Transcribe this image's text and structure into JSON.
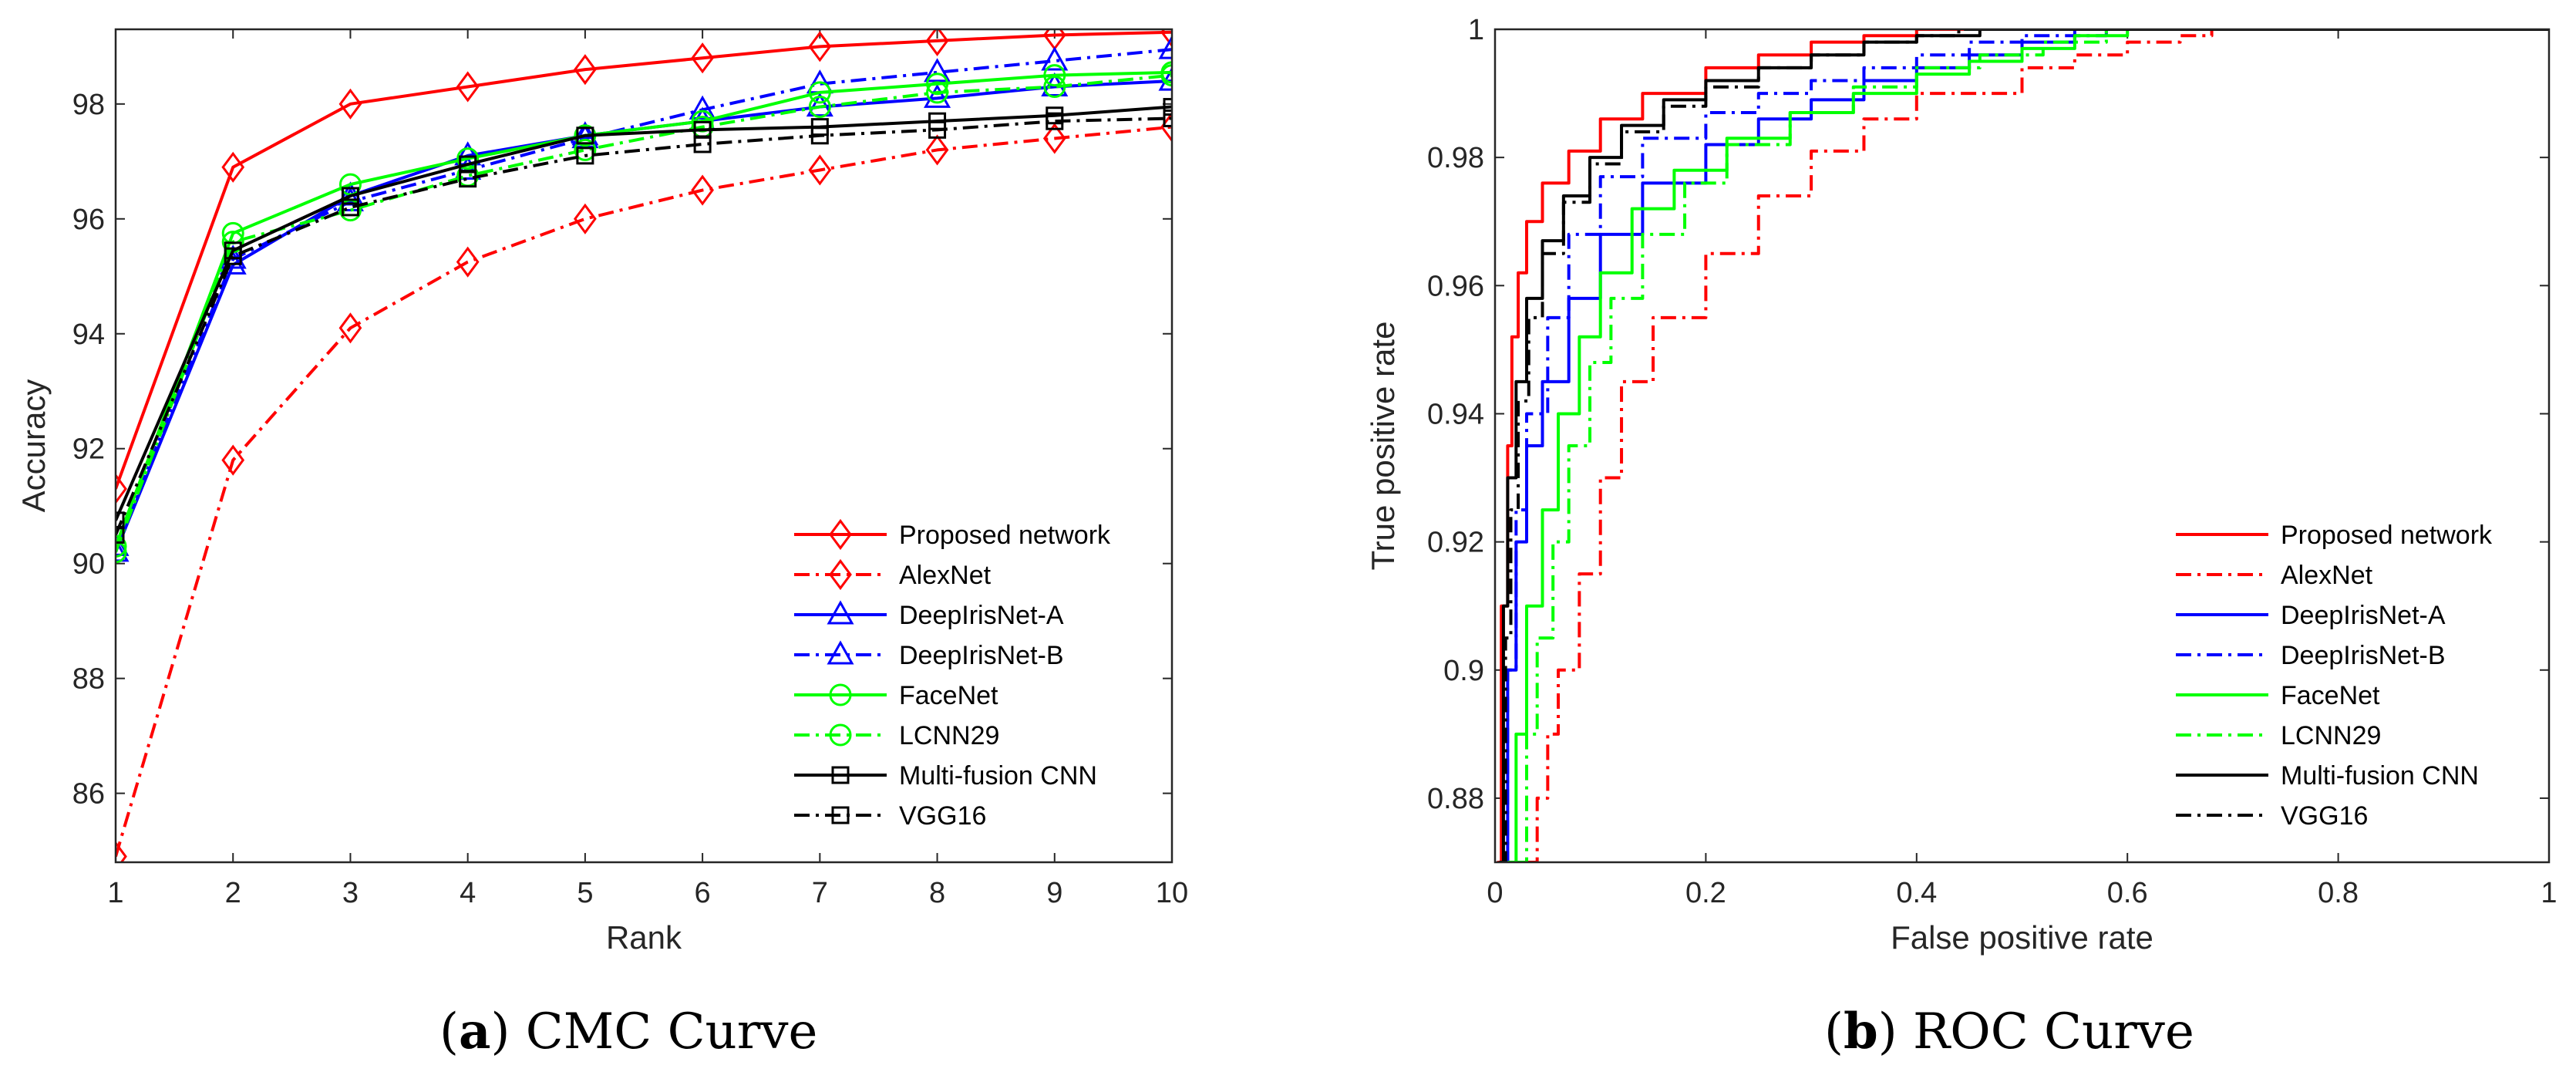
{
  "captions": [
    {
      "label": "a",
      "text": "CMC Curve"
    },
    {
      "label": "b",
      "text": "ROC Curve"
    }
  ],
  "chart_data": [
    {
      "type": "line",
      "panel": "a",
      "xlabel": "Rank",
      "ylabel": "Accuracy",
      "xlim": [
        1,
        10
      ],
      "ylim": [
        84.8,
        99.3
      ],
      "xticks": [
        1,
        2,
        3,
        4,
        5,
        6,
        7,
        8,
        9,
        10
      ],
      "yticks": [
        86,
        88,
        90,
        92,
        94,
        96,
        98
      ],
      "legend_position": "bottom-right",
      "x": [
        1,
        2,
        3,
        4,
        5,
        6,
        7,
        8,
        9,
        10
      ],
      "series": [
        {
          "name": "Proposed network",
          "color": "#ff0000",
          "style": "solid",
          "marker": "diamond",
          "values": [
            91.3,
            96.9,
            98.0,
            98.3,
            98.6,
            98.8,
            99.0,
            99.1,
            99.2,
            99.25
          ]
        },
        {
          "name": "AlexNet",
          "color": "#ff0000",
          "style": "dashdot",
          "marker": "diamond",
          "values": [
            84.9,
            91.8,
            94.1,
            95.25,
            96.0,
            96.5,
            96.85,
            97.2,
            97.4,
            97.6
          ]
        },
        {
          "name": "DeepIrisNet-A",
          "color": "#0000ff",
          "style": "solid",
          "marker": "triangle",
          "values": [
            90.2,
            95.2,
            96.4,
            97.1,
            97.45,
            97.7,
            97.95,
            98.1,
            98.3,
            98.4
          ]
        },
        {
          "name": "DeepIrisNet-B",
          "color": "#0000ff",
          "style": "dashdot",
          "marker": "triangle",
          "values": [
            90.3,
            95.3,
            96.3,
            96.85,
            97.4,
            97.9,
            98.35,
            98.55,
            98.75,
            98.95
          ]
        },
        {
          "name": "FaceNet",
          "color": "#00ff00",
          "style": "solid",
          "marker": "circle",
          "values": [
            90.3,
            95.75,
            96.6,
            97.05,
            97.45,
            97.7,
            98.2,
            98.35,
            98.5,
            98.55
          ]
        },
        {
          "name": "LCNN29",
          "color": "#00ff00",
          "style": "dashdot",
          "marker": "circle",
          "values": [
            90.2,
            95.6,
            96.15,
            96.75,
            97.2,
            97.6,
            97.95,
            98.2,
            98.3,
            98.5
          ]
        },
        {
          "name": "Multi-fusion CNN",
          "color": "#000000",
          "style": "solid",
          "marker": "square",
          "values": [
            90.75,
            95.45,
            96.4,
            96.95,
            97.45,
            97.55,
            97.6,
            97.7,
            97.8,
            97.95
          ]
        },
        {
          "name": "VGG16",
          "color": "#000000",
          "style": "dashdot",
          "marker": "square",
          "values": [
            90.5,
            95.35,
            96.2,
            96.7,
            97.1,
            97.3,
            97.45,
            97.55,
            97.7,
            97.75
          ]
        }
      ]
    },
    {
      "type": "line",
      "panel": "b",
      "xlabel": "False positive rate",
      "ylabel": "True positive rate",
      "xlim": [
        0,
        1
      ],
      "ylim": [
        0.87,
        1.0
      ],
      "xticks": [
        0,
        0.2,
        0.4,
        0.6,
        0.8,
        1
      ],
      "yticks": [
        0.88,
        0.9,
        0.92,
        0.94,
        0.96,
        0.98,
        1
      ],
      "legend_position": "bottom-right",
      "series": [
        {
          "name": "Proposed network",
          "color": "#ff0000",
          "style": "solid",
          "x": [
            0.002,
            0.006,
            0.012,
            0.016,
            0.022,
            0.03,
            0.045,
            0.07,
            0.1,
            0.14,
            0.2,
            0.25,
            0.3,
            0.35,
            0.4,
            0.45,
            1
          ],
          "y": [
            0.87,
            0.91,
            0.935,
            0.952,
            0.962,
            0.97,
            0.976,
            0.981,
            0.986,
            0.99,
            0.994,
            0.996,
            0.998,
            0.999,
            1.0,
            1.0,
            1.0
          ]
        },
        {
          "name": "AlexNet",
          "color": "#ff0000",
          "style": "dashdot",
          "x": [
            0.03,
            0.04,
            0.05,
            0.06,
            0.08,
            0.1,
            0.12,
            0.15,
            0.2,
            0.25,
            0.3,
            0.35,
            0.4,
            0.5,
            0.55,
            0.6,
            0.65,
            0.68,
            1
          ],
          "y": [
            0.87,
            0.88,
            0.89,
            0.9,
            0.915,
            0.93,
            0.945,
            0.955,
            0.965,
            0.974,
            0.981,
            0.986,
            0.99,
            0.994,
            0.996,
            0.998,
            0.999,
            1.0,
            1.0
          ]
        },
        {
          "name": "DeepIrisNet-A",
          "color": "#0000ff",
          "style": "solid",
          "x": [
            0.008,
            0.012,
            0.02,
            0.03,
            0.045,
            0.07,
            0.1,
            0.14,
            0.2,
            0.25,
            0.3,
            0.35,
            0.4,
            0.45,
            0.5,
            0.55,
            1
          ],
          "y": [
            0.87,
            0.9,
            0.92,
            0.935,
            0.945,
            0.958,
            0.968,
            0.976,
            0.982,
            0.986,
            0.989,
            0.992,
            0.994,
            0.996,
            0.998,
            1.0,
            1.0
          ]
        },
        {
          "name": "DeepIrisNet-B",
          "color": "#0000ff",
          "style": "dashdot",
          "x": [
            0.008,
            0.012,
            0.02,
            0.03,
            0.05,
            0.07,
            0.1,
            0.14,
            0.2,
            0.25,
            0.3,
            0.35,
            0.4,
            0.45,
            0.5,
            0.58,
            1
          ],
          "y": [
            0.87,
            0.9,
            0.925,
            0.94,
            0.955,
            0.968,
            0.977,
            0.983,
            0.987,
            0.99,
            0.992,
            0.994,
            0.996,
            0.998,
            0.999,
            1.0,
            1.0
          ]
        },
        {
          "name": "FaceNet",
          "color": "#00ff00",
          "style": "solid",
          "x": [
            0.012,
            0.02,
            0.03,
            0.045,
            0.06,
            0.08,
            0.1,
            0.13,
            0.17,
            0.22,
            0.28,
            0.34,
            0.4,
            0.45,
            0.5,
            0.55,
            0.6,
            1
          ],
          "y": [
            0.87,
            0.89,
            0.91,
            0.925,
            0.94,
            0.952,
            0.962,
            0.972,
            0.978,
            0.983,
            0.987,
            0.99,
            0.993,
            0.995,
            0.997,
            0.999,
            1.0,
            1.0
          ]
        },
        {
          "name": "LCNN29",
          "color": "#00ff00",
          "style": "dashdot",
          "x": [
            0.02,
            0.03,
            0.04,
            0.055,
            0.07,
            0.09,
            0.11,
            0.14,
            0.18,
            0.22,
            0.28,
            0.34,
            0.4,
            0.46,
            0.52,
            0.58,
            1
          ],
          "y": [
            0.87,
            0.89,
            0.905,
            0.92,
            0.935,
            0.948,
            0.958,
            0.968,
            0.976,
            0.982,
            0.987,
            0.991,
            0.994,
            0.996,
            0.998,
            1.0,
            1.0
          ]
        },
        {
          "name": "Multi-fusion CNN",
          "color": "#000000",
          "style": "solid",
          "x": [
            0.004,
            0.008,
            0.012,
            0.02,
            0.03,
            0.045,
            0.065,
            0.09,
            0.12,
            0.16,
            0.2,
            0.25,
            0.3,
            0.35,
            0.4,
            0.46,
            1
          ],
          "y": [
            0.87,
            0.91,
            0.93,
            0.945,
            0.958,
            0.967,
            0.974,
            0.98,
            0.985,
            0.989,
            0.992,
            0.994,
            0.996,
            0.998,
            0.999,
            1.0,
            1.0
          ]
        },
        {
          "name": "VGG16",
          "color": "#000000",
          "style": "dashdot",
          "x": [
            0.006,
            0.01,
            0.015,
            0.022,
            0.032,
            0.045,
            0.065,
            0.09,
            0.12,
            0.16,
            0.2,
            0.25,
            0.3,
            0.35,
            0.4,
            0.44,
            1
          ],
          "y": [
            0.87,
            0.905,
            0.925,
            0.942,
            0.955,
            0.965,
            0.973,
            0.979,
            0.984,
            0.988,
            0.991,
            0.994,
            0.996,
            0.998,
            0.999,
            1.0,
            1.0
          ]
        }
      ]
    }
  ]
}
